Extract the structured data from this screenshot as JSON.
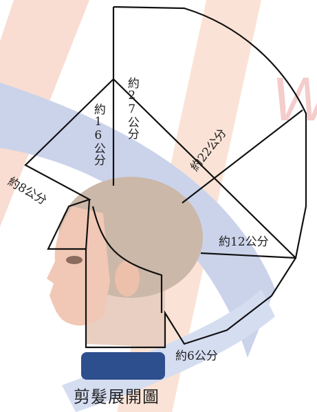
{
  "labels": {
    "top": "約27公分",
    "upper": "約16公分",
    "right_upper": "約22公分",
    "left": "約8公分",
    "right": "約12公分",
    "bottom": "約6公分"
  },
  "title": "剪髮展開圖"
}
